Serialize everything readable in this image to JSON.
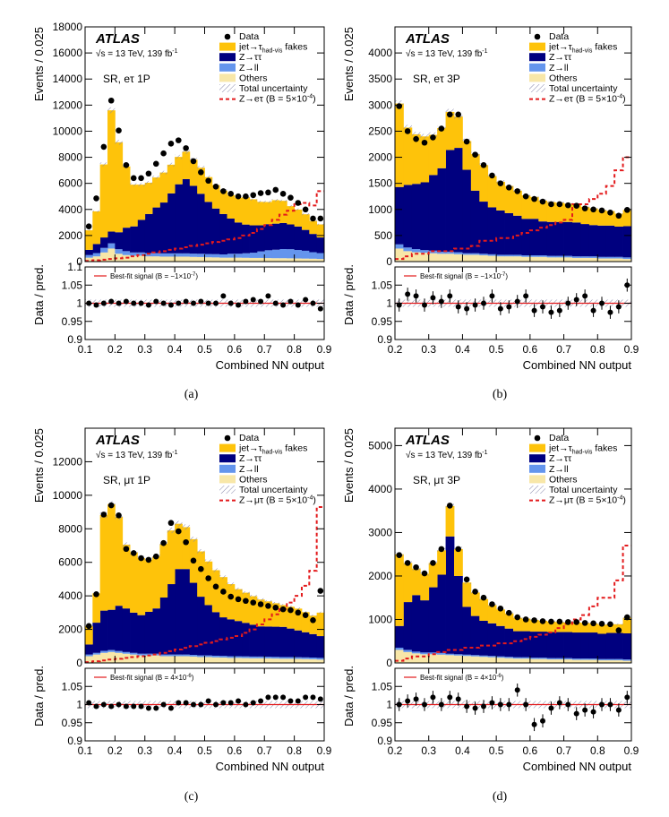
{
  "chart_data": [
    {
      "type": "stacked-histogram",
      "caption": "(a)",
      "atlas_label": "ATLAS",
      "energy_text": "√s = 13 TeV, 139 fb",
      "energy_sup": "-1",
      "region_text": "SR, eτ 1P",
      "xlabel": "Combined NN output",
      "ylabel_top": "Events / 0.025",
      "ylabel_ratio": "Data / pred.",
      "xlim": [
        0.1,
        0.9
      ],
      "ylim": [
        0,
        18000
      ],
      "yticks": [
        0,
        2000,
        4000,
        6000,
        8000,
        10000,
        12000,
        14000,
        16000,
        18000
      ],
      "xticks": [
        0.1,
        0.2,
        0.3,
        0.4,
        0.5,
        0.6,
        0.7,
        0.8,
        0.9
      ],
      "ratio_ylim": [
        0.9,
        1.1
      ],
      "ratio_yticks": [
        0.9,
        0.95,
        1,
        1.05,
        1.1
      ],
      "bestfit_label": "Best-fit signal (B = −1×10",
      "bestfit_sup": "-7",
      "signal_label": "Z→eτ (B = 5×10",
      "signal_sup": "-4",
      "signal_label_end": ")",
      "bin_width": 0.025,
      "series": [
        {
          "name": "Others",
          "values": [
            300,
            400,
            700,
            1000,
            600,
            500,
            450,
            450,
            400,
            400,
            380,
            380,
            380,
            380,
            360,
            350,
            330,
            320,
            300,
            300,
            300,
            290,
            280,
            280,
            270,
            260,
            260,
            250,
            240,
            230,
            220,
            200
          ]
        },
        {
          "name": "Z→ll",
          "values": [
            200,
            250,
            350,
            400,
            350,
            300,
            250,
            250,
            250,
            250,
            250,
            250,
            250,
            250,
            250,
            250,
            250,
            250,
            250,
            300,
            300,
            350,
            400,
            500,
            600,
            650,
            700,
            700,
            650,
            600,
            500,
            450
          ]
        },
        {
          "name": "Z→ττ",
          "values": [
            400,
            700,
            800,
            900,
            1300,
            1800,
            2000,
            2500,
            3000,
            3500,
            3900,
            4600,
            5300,
            5700,
            5200,
            4600,
            4000,
            3500,
            3100,
            2700,
            2400,
            2200,
            2100,
            2000,
            2000,
            2000,
            2000,
            1900,
            1800,
            1600,
            1400,
            1200
          ]
        },
        {
          "name": "jet→τhad-vis fakes",
          "values": [
            1500,
            2500,
            5600,
            9300,
            6900,
            4700,
            3200,
            2700,
            2400,
            2300,
            2300,
            2200,
            2100,
            2100,
            2000,
            2000,
            1900,
            1800,
            1800,
            1800,
            1900,
            2100,
            2000,
            1800,
            1700,
            1800,
            1700,
            1400,
            1300,
            1200,
            1000,
            1000
          ]
        }
      ],
      "data_points": [
        2700,
        4850,
        8800,
        12350,
        10050,
        7400,
        6400,
        6400,
        6750,
        7500,
        8300,
        9050,
        9300,
        8700,
        7700,
        6850,
        6200,
        5750,
        5400,
        5200,
        5000,
        5000,
        5100,
        5250,
        5300,
        5500,
        5200,
        4900,
        4500,
        4000,
        3300,
        3300
      ],
      "signal_values": [
        50,
        100,
        150,
        200,
        250,
        300,
        400,
        500,
        600,
        700,
        800,
        900,
        1000,
        1100,
        1200,
        1300,
        1400,
        1500,
        1600,
        1700,
        1800,
        2000,
        2200,
        2500,
        2800,
        3200,
        3600,
        3900,
        4400,
        4500,
        4300,
        5400
      ],
      "ratio_values": [
        1.0,
        0.995,
        1.0,
        1.005,
        1.0,
        1.005,
        1.0,
        1.0,
        0.995,
        1.005,
        1.0,
        0.995,
        1.0,
        1.005,
        1.0,
        1.005,
        1.0,
        1.0,
        1.02,
        1.0,
        0.995,
        1.005,
        1.01,
        1.005,
        1.02,
        1.0,
        0.995,
        1.005,
        0.995,
        1.01,
        1.0,
        0.985
      ]
    },
    {
      "type": "stacked-histogram",
      "caption": "(b)",
      "atlas_label": "ATLAS",
      "energy_text": "√s = 13 TeV, 139 fb",
      "energy_sup": "-1",
      "region_text": "SR, eτ 3P",
      "xlabel": "Combined NN output",
      "ylabel_top": "Events / 0.025",
      "ylabel_ratio": "Data / pred.",
      "xlim": [
        0.2,
        0.9
      ],
      "ylim": [
        0,
        4500
      ],
      "yticks": [
        0,
        500,
        1000,
        1500,
        2000,
        2500,
        3000,
        3500,
        4000
      ],
      "xticks": [
        0.2,
        0.3,
        0.4,
        0.5,
        0.6,
        0.7,
        0.8,
        0.9
      ],
      "ratio_ylim": [
        0.9,
        1.1
      ],
      "ratio_yticks": [
        0.9,
        0.95,
        1,
        1.05
      ],
      "bestfit_label": "Best-fit signal (B = −1×10",
      "bestfit_sup": "-7",
      "signal_label": "Z→eτ (B = 5×10",
      "signal_sup": "-4",
      "signal_label_end": ")",
      "bin_width": 0.025,
      "series": [
        {
          "name": "Others",
          "values": [
            250,
            200,
            180,
            170,
            160,
            150,
            150,
            140,
            130,
            130,
            120,
            110,
            100,
            100,
            100,
            90,
            90,
            90,
            80,
            80,
            80,
            70,
            70,
            70,
            60,
            60,
            60,
            50
          ]
        },
        {
          "name": "Z→ll",
          "values": [
            80,
            70,
            60,
            50,
            50,
            40,
            40,
            40,
            30,
            30,
            30,
            30,
            30,
            30,
            30,
            30,
            30,
            30,
            30,
            30,
            30,
            30,
            30,
            30,
            30,
            30,
            30,
            30
          ]
        },
        {
          "name": "Z→ττ",
          "values": [
            1100,
            1200,
            1250,
            1300,
            1450,
            1600,
            1950,
            2000,
            1600,
            1200,
            1000,
            900,
            850,
            800,
            750,
            700,
            700,
            650,
            650,
            650,
            650,
            650,
            620,
            600,
            600,
            600,
            580,
            600
          ]
        },
        {
          "name": "jet→τhad-vis fakes",
          "values": [
            1600,
            1100,
            950,
            880,
            770,
            770,
            730,
            600,
            550,
            700,
            700,
            600,
            550,
            520,
            480,
            450,
            420,
            400,
            380,
            370,
            350,
            350,
            330,
            320,
            300,
            280,
            250,
            310
          ]
        }
      ],
      "data_points": [
        2980,
        2500,
        2350,
        2280,
        2380,
        2550,
        2820,
        2820,
        2300,
        2050,
        1850,
        1650,
        1500,
        1420,
        1350,
        1250,
        1200,
        1150,
        1100,
        1100,
        1080,
        1070,
        1020,
        1000,
        980,
        940,
        880,
        990
      ],
      "signal_values": [
        50,
        100,
        150,
        150,
        200,
        200,
        200,
        250,
        250,
        300,
        400,
        400,
        450,
        450,
        500,
        550,
        600,
        650,
        700,
        750,
        800,
        1100,
        1100,
        1200,
        1300,
        1450,
        1750,
        2000
      ],
      "ratio_values": [
        0.995,
        1.025,
        1.02,
        0.995,
        1.015,
        1.005,
        1.02,
        0.99,
        0.985,
        0.995,
        1.0,
        1.02,
        0.985,
        0.99,
        1.005,
        1.02,
        0.98,
        0.99,
        0.975,
        0.98,
        1.0,
        1.01,
        1.02,
        0.98,
        1.0,
        0.975,
        0.99,
        1.05
      ]
    },
    {
      "type": "stacked-histogram",
      "caption": "(c)",
      "atlas_label": "ATLAS",
      "energy_text": "√s = 13 TeV, 139 fb",
      "energy_sup": "-1",
      "region_text": "SR, μτ 1P",
      "xlabel": "Combined NN output",
      "ylabel_top": "Events / 0.025",
      "ylabel_ratio": "Data / pred.",
      "xlim": [
        0.1,
        0.9
      ],
      "ylim": [
        0,
        14000
      ],
      "yticks": [
        0,
        2000,
        4000,
        6000,
        8000,
        10000,
        12000
      ],
      "xticks": [
        0.1,
        0.2,
        0.3,
        0.4,
        0.5,
        0.6,
        0.7,
        0.8,
        0.9
      ],
      "ratio_ylim": [
        0.9,
        1.1
      ],
      "ratio_yticks": [
        0.9,
        0.95,
        1,
        1.05
      ],
      "bestfit_label": "Best-fit signal (B = 4×10",
      "bestfit_sup": "-6",
      "signal_label": "Z→μτ (B = 5×10",
      "signal_sup": "-4",
      "signal_label_end": ")",
      "bin_width": 0.025,
      "series": [
        {
          "name": "Others",
          "values": [
            400,
            500,
            600,
            650,
            600,
            550,
            500,
            450,
            450,
            450,
            400,
            400,
            400,
            400,
            380,
            350,
            350,
            330,
            320,
            300,
            300,
            290,
            280,
            280,
            270,
            260,
            250,
            250,
            240,
            230,
            220,
            200
          ]
        },
        {
          "name": "Z→ll",
          "values": [
            100,
            100,
            120,
            120,
            110,
            100,
            100,
            100,
            100,
            100,
            100,
            100,
            100,
            100,
            100,
            100,
            100,
            100,
            100,
            100,
            100,
            100,
            100,
            100,
            100,
            100,
            100,
            100,
            100,
            100,
            100,
            100
          ]
        },
        {
          "name": "Z→ττ",
          "values": [
            600,
            1800,
            2400,
            2400,
            2700,
            2600,
            2400,
            2300,
            2500,
            2700,
            3400,
            4200,
            5100,
            5100,
            4300,
            3500,
            3000,
            2600,
            2300,
            2200,
            2100,
            2000,
            1900,
            1800,
            1800,
            1800,
            1800,
            1700,
            1600,
            1500,
            1400,
            1300
          ]
        },
        {
          "name": "jet→τhad-vis fakes",
          "values": [
            1100,
            1750,
            5700,
            6300,
            5300,
            3800,
            3600,
            3400,
            3100,
            3100,
            3200,
            3200,
            2700,
            2500,
            2600,
            2700,
            2600,
            2500,
            2400,
            2100,
            1900,
            1800,
            1700,
            1600,
            1500,
            1400,
            1300,
            1300,
            1300,
            1200,
            1100,
            1400
          ]
        }
      ],
      "data_points": [
        2200,
        4100,
        8850,
        9400,
        8800,
        6800,
        6550,
        6250,
        6150,
        6350,
        7150,
        8350,
        7850,
        7200,
        6100,
        5600,
        5050,
        4550,
        4250,
        3950,
        3800,
        3700,
        3600,
        3500,
        3400,
        3300,
        3200,
        3150,
        3000,
        2850,
        2550,
        4300
      ],
      "signal_values": [
        50,
        100,
        150,
        200,
        250,
        300,
        350,
        400,
        450,
        500,
        600,
        700,
        800,
        900,
        1000,
        1100,
        1200,
        1300,
        1400,
        1500,
        1600,
        1800,
        2000,
        2300,
        2600,
        2900,
        3200,
        3600,
        4000,
        4600,
        5500,
        9300
      ],
      "ratio_values": [
        1.005,
        0.995,
        1.0,
        0.995,
        1.0,
        0.995,
        0.995,
        0.995,
        0.99,
        0.99,
        1.0,
        0.99,
        1.005,
        1.005,
        1.0,
        1.0,
        1.01,
        1.0,
        1.005,
        1.005,
        1.01,
        1.0,
        1.005,
        1.01,
        1.02,
        1.02,
        1.02,
        1.01,
        1.01,
        1.02,
        1.02,
        1.015
      ]
    },
    {
      "type": "stacked-histogram",
      "caption": "(d)",
      "atlas_label": "ATLAS",
      "energy_text": "√s = 13 TeV, 139 fb",
      "energy_sup": "-1",
      "region_text": "SR, μτ 3P",
      "xlabel": "Combined NN output",
      "ylabel_top": "Events / 0.025",
      "ylabel_ratio": "Data / pred.",
      "xlim": [
        0.2,
        0.9
      ],
      "ylim": [
        0,
        5400
      ],
      "yticks": [
        0,
        1000,
        2000,
        3000,
        4000,
        5000
      ],
      "xticks": [
        0.2,
        0.3,
        0.4,
        0.5,
        0.6,
        0.7,
        0.8,
        0.9
      ],
      "ratio_ylim": [
        0.9,
        1.1
      ],
      "ratio_yticks": [
        0.9,
        0.95,
        1,
        1.05
      ],
      "bestfit_label": "Best-fit signal (B = 4×10",
      "bestfit_sup": "-6",
      "signal_label": "Z→μτ (B = 5×10",
      "signal_sup": "-4",
      "signal_label_end": ")",
      "bin_width": 0.025,
      "series": [
        {
          "name": "Others",
          "values": [
            300,
            250,
            220,
            200,
            200,
            190,
            180,
            170,
            160,
            150,
            140,
            130,
            120,
            110,
            100,
            100,
            90,
            90,
            80,
            80,
            80,
            70,
            70,
            70,
            60,
            60,
            60,
            50
          ]
        },
        {
          "name": "Z→ll",
          "values": [
            50,
            50,
            40,
            40,
            40,
            40,
            30,
            30,
            30,
            30,
            30,
            30,
            30,
            30,
            30,
            30,
            30,
            30,
            30,
            30,
            30,
            30,
            30,
            30,
            30,
            30,
            30,
            30
          ]
        },
        {
          "name": "Z→ττ",
          "values": [
            500,
            1100,
            1300,
            1200,
            1500,
            1800,
            2700,
            1800,
            1100,
            900,
            800,
            750,
            700,
            650,
            600,
            600,
            600,
            600,
            600,
            600,
            600,
            600,
            600,
            600,
            580,
            600,
            600,
            600
          ]
        },
        {
          "name": "jet→τhad-vis fakes",
          "values": [
            1650,
            900,
            610,
            610,
            560,
            560,
            700,
            620,
            560,
            540,
            500,
            420,
            380,
            350,
            310,
            290,
            270,
            250,
            240,
            230,
            220,
            230,
            220,
            210,
            210,
            200,
            200,
            360
          ]
        }
      ],
      "data_points": [
        2480,
        2300,
        2200,
        2060,
        2300,
        2620,
        3620,
        2620,
        1920,
        1640,
        1500,
        1350,
        1250,
        1150,
        1050,
        1000,
        980,
        960,
        950,
        950,
        940,
        940,
        920,
        910,
        900,
        890,
        750,
        1050
      ],
      "signal_values": [
        50,
        100,
        150,
        150,
        200,
        250,
        300,
        300,
        350,
        350,
        400,
        400,
        450,
        450,
        500,
        550,
        600,
        650,
        700,
        800,
        900,
        1000,
        1100,
        1300,
        1500,
        1500,
        1900,
        2700
      ],
      "ratio_values": [
        1.0,
        1.01,
        1.015,
        1.0,
        1.02,
        1.0,
        1.02,
        1.015,
        0.995,
        0.99,
        0.995,
        1.005,
        1.0,
        1.0,
        1.04,
        1.0,
        0.945,
        0.955,
        0.99,
        1.005,
        1.0,
        0.975,
        0.985,
        0.98,
        1.0,
        1.0,
        0.985,
        1.02
      ]
    }
  ],
  "legend": {
    "data": "Data",
    "fakes": "jet→τ",
    "fakes_sub": "had-vis",
    "fakes_end": " fakes",
    "ztt": "Z→ττ",
    "zll": "Z→ll",
    "others": "Others",
    "unc": "Total uncertainty"
  },
  "colors": {
    "fakes": "#fec30a",
    "ztt": "#00007f",
    "zll": "#6495ed",
    "others": "#f8e7a8",
    "signal": "#e31a1c",
    "bestfit": "#e31a1c",
    "data": "#000000"
  }
}
